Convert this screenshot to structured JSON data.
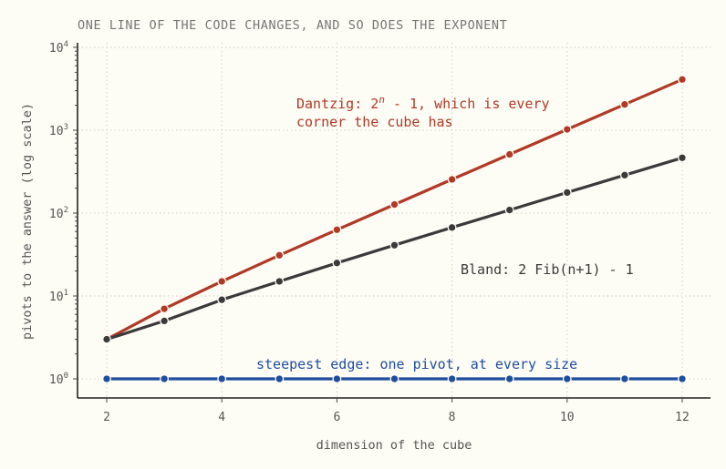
{
  "chart_data": {
    "type": "line",
    "title": "ONE LINE OF THE CODE CHANGES, AND SO DOES THE EXPONENT",
    "xlabel": "dimension of the cube",
    "ylabel": "pivots to the answer (log scale)",
    "yscale": "log",
    "xlim": [
      1.5,
      12.5
    ],
    "ylim": [
      0.55,
      10000
    ],
    "x_ticks": [
      2,
      4,
      6,
      8,
      10,
      12
    ],
    "y_ticks": [
      {
        "value": 1,
        "base": "10",
        "exp": "0"
      },
      {
        "value": 10,
        "base": "10",
        "exp": "1"
      },
      {
        "value": 100,
        "base": "10",
        "exp": "2"
      },
      {
        "value": 1000,
        "base": "10",
        "exp": "3"
      },
      {
        "value": 10000,
        "base": "10",
        "exp": "4"
      }
    ],
    "grid": true,
    "x": [
      2,
      3,
      4,
      5,
      6,
      7,
      8,
      9,
      10,
      11,
      12
    ],
    "series": [
      {
        "key": "dantzig",
        "color": "#b03a26",
        "values": [
          3,
          7,
          15,
          31,
          63,
          127,
          255,
          511,
          1023,
          2047,
          4095
        ]
      },
      {
        "key": "bland",
        "color": "#3a3a3a",
        "values": [
          3,
          5,
          9,
          15,
          25,
          41,
          67,
          109,
          177,
          287,
          465
        ]
      },
      {
        "key": "steepest",
        "color": "#1f4e9e",
        "values": [
          1,
          1,
          1,
          1,
          1,
          1,
          1,
          1,
          1,
          1,
          1
        ]
      }
    ],
    "annotations": [
      {
        "key": "dantzig",
        "color": "#b03a26",
        "line1_prefix": "Dantzig: 2",
        "line1_sup": "n",
        "line1_suffix": " - 1, which is every",
        "line2": "corner the cube has"
      },
      {
        "key": "bland",
        "color": "#3a3a3a",
        "text": "Bland: 2 Fib(n+1) - 1"
      },
      {
        "key": "steepest",
        "color": "#1f4e9e",
        "text": "steepest edge: one pivot, at every size"
      }
    ]
  }
}
